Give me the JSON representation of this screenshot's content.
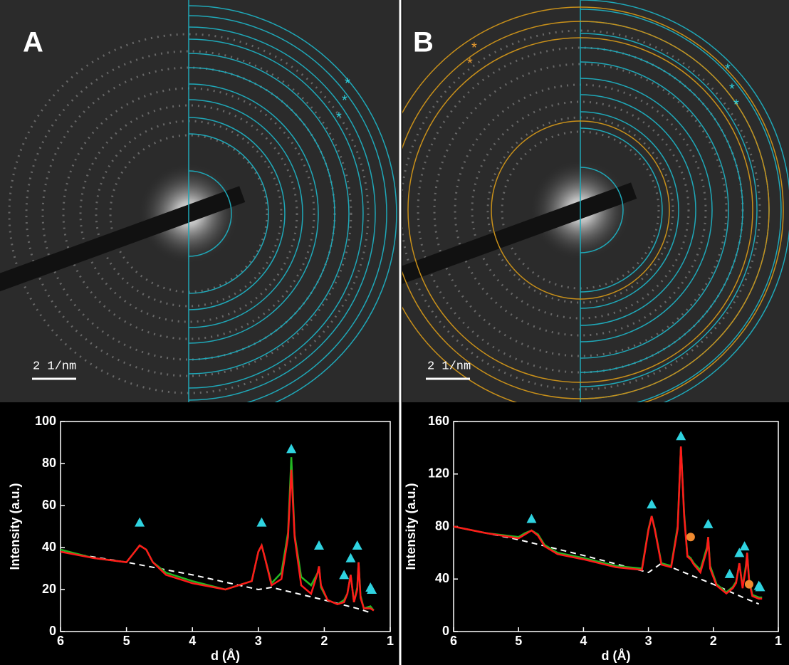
{
  "images": [
    {
      "label": "A",
      "scale_bar": "2 1/nm",
      "asterisks": [
        "*",
        "*",
        "*"
      ]
    },
    {
      "label": "B",
      "scale_bar": "2 1/nm",
      "asterisks": [
        "*",
        "*",
        "*",
        "*",
        "*"
      ]
    }
  ],
  "chart_data": [
    {
      "type": "line",
      "x_label": "d (Å)",
      "y_label": "Intensity (a.u.)",
      "xlim": [
        6,
        1
      ],
      "xticks": [
        6,
        5,
        4,
        3,
        2,
        1
      ],
      "ylim": [
        0,
        100
      ],
      "yticks": [
        0,
        20,
        40,
        60,
        80,
        100
      ],
      "x": [
        6,
        5.5,
        5.0,
        4.9,
        4.8,
        4.7,
        4.6,
        4.4,
        4,
        3.5,
        3.1,
        3.0,
        2.95,
        2.9,
        2.8,
        2.65,
        2.55,
        2.5,
        2.45,
        2.35,
        2.2,
        2.1,
        2.08,
        2.05,
        1.95,
        1.8,
        1.7,
        1.65,
        1.6,
        1.55,
        1.5,
        1.48,
        1.45,
        1.4,
        1.3,
        1.25
      ],
      "series": [
        {
          "color": "#22b822",
          "values": [
            39,
            35,
            33,
            37,
            41,
            39,
            33,
            28,
            24,
            20,
            24,
            38,
            41,
            35,
            23,
            28,
            47,
            83,
            46,
            26,
            22,
            28,
            31,
            21,
            15,
            13,
            15,
            18,
            27,
            14,
            21,
            33,
            17,
            11,
            12,
            10
          ]
        },
        {
          "color": "#ff1a1a",
          "values": [
            38,
            35,
            33,
            37,
            41,
            39,
            33,
            27,
            23,
            20,
            24,
            38,
            41,
            35,
            22,
            25,
            45,
            77,
            45,
            22,
            18,
            28,
            31,
            22,
            15,
            13,
            14,
            18,
            27,
            14,
            20,
            33,
            16,
            11,
            11,
            10
          ]
        }
      ],
      "baseline": {
        "color": "#ffffff",
        "x": [
          6,
          5,
          4,
          3,
          2.8,
          2,
          1.5,
          1.3
        ],
        "values": [
          38,
          33,
          27,
          20,
          21,
          15,
          11,
          9
        ]
      },
      "points": [
        {
          "shape": "triangle",
          "color": "#2fd3e0",
          "x": [
            4.8,
            2.95,
            2.5,
            2.08,
            1.7,
            1.6,
            1.5,
            1.3,
            1.28
          ],
          "values": [
            52,
            52,
            87,
            41,
            27,
            35,
            41,
            21,
            20
          ]
        }
      ]
    },
    {
      "type": "line",
      "x_label": "d (Å)",
      "y_label": "Intensity (a.u.)",
      "xlim": [
        6,
        1
      ],
      "xticks": [
        6,
        5,
        4,
        3,
        2,
        1
      ],
      "ylim": [
        0,
        160
      ],
      "yticks": [
        0,
        40,
        80,
        120,
        160
      ],
      "x": [
        6,
        5.5,
        5.0,
        4.9,
        4.8,
        4.7,
        4.6,
        4.4,
        4,
        3.5,
        3.1,
        3.0,
        2.95,
        2.9,
        2.8,
        2.65,
        2.55,
        2.5,
        2.45,
        2.4,
        2.35,
        2.3,
        2.2,
        2.1,
        2.08,
        2.05,
        1.95,
        1.8,
        1.7,
        1.65,
        1.6,
        1.55,
        1.5,
        1.48,
        1.45,
        1.4,
        1.3,
        1.25
      ],
      "series": [
        {
          "color": "#22b822",
          "values": [
            80,
            75,
            72,
            75,
            77,
            74,
            66,
            60,
            56,
            50,
            48,
            78,
            88,
            78,
            52,
            50,
            80,
            141,
            90,
            58,
            56,
            52,
            47,
            64,
            72,
            50,
            36,
            30,
            34,
            38,
            52,
            34,
            50,
            60,
            40,
            28,
            26,
            26
          ]
        },
        {
          "color": "#ff1a1a",
          "values": [
            80,
            75,
            71,
            74,
            77,
            73,
            65,
            59,
            55,
            49,
            47,
            77,
            88,
            77,
            51,
            49,
            78,
            141,
            88,
            57,
            55,
            51,
            45,
            62,
            72,
            48,
            35,
            29,
            33,
            37,
            52,
            33,
            48,
            60,
            38,
            27,
            25,
            25
          ]
        }
      ],
      "baseline": {
        "color": "#ffffff",
        "x": [
          6,
          5,
          4,
          3,
          2.8,
          2,
          1.5,
          1.3
        ],
        "values": [
          80,
          70,
          58,
          45,
          52,
          36,
          25,
          21
        ]
      },
      "points": [
        {
          "shape": "triangle",
          "color": "#2fd3e0",
          "x": [
            4.8,
            2.95,
            2.5,
            2.08,
            1.75,
            1.6,
            1.52,
            1.3,
            1.28
          ],
          "values": [
            86,
            97,
            149,
            82,
            44,
            60,
            65,
            35,
            34
          ]
        },
        {
          "shape": "circle",
          "color": "#f08a30",
          "x": [
            2.35,
            1.45
          ],
          "values": [
            72,
            36
          ]
        }
      ]
    }
  ]
}
